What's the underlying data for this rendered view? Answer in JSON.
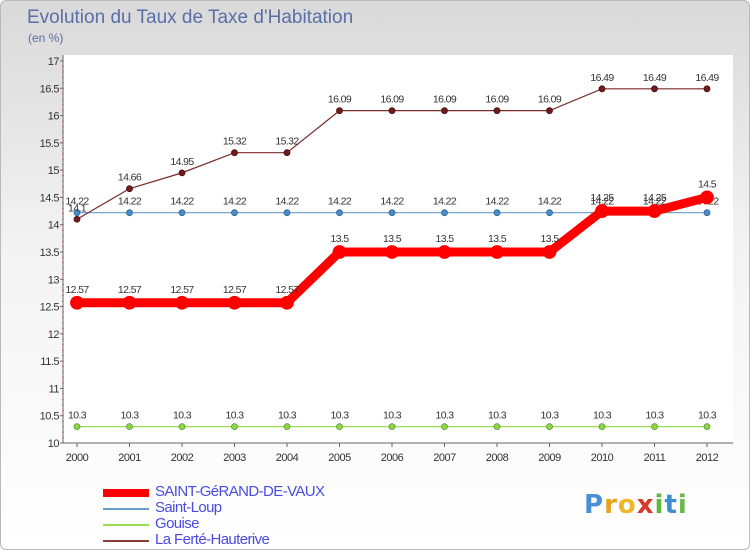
{
  "title": "Evolution du Taux de Taxe d'Habitation",
  "unit_label": "(en %)",
  "logo": {
    "text": "Proxiti",
    "letters": [
      "P",
      "r",
      "o",
      "x",
      "i",
      "t",
      "i"
    ],
    "colors": [
      "#4a8fd8",
      "#e9a21c",
      "#f0b62a",
      "#d63b2a",
      "#5fb63c",
      "#3f8fd0",
      "#6ab84a"
    ]
  },
  "legend": [
    {
      "label": "SAINT-GéRAND-DE-VAUX",
      "color": "#ff0000",
      "width": 8
    },
    {
      "label": "Saint-Loup",
      "color": "#6a9cc8",
      "width": 2
    },
    {
      "label": "Gouise",
      "color": "#99dd55",
      "width": 2
    },
    {
      "label": "La Ferté-Hauterive",
      "color": "#8b3a3a",
      "width": 2
    }
  ],
  "chart_data": {
    "type": "line",
    "x": [
      "2000",
      "2001",
      "2002",
      "2003",
      "2004",
      "2005",
      "2006",
      "2007",
      "2008",
      "2009",
      "2010",
      "2011",
      "2012"
    ],
    "ylim": [
      10,
      17
    ],
    "yticks": [
      "10",
      "10.5",
      "11",
      "11.5",
      "12",
      "12.5",
      "13",
      "13.5",
      "14",
      "14.5",
      "15",
      "15.5",
      "16",
      "16.5",
      "17"
    ],
    "series": [
      {
        "name": "SAINT-GéRAND-DE-VAUX",
        "color": "#ff0000",
        "values": [
          12.57,
          12.57,
          12.57,
          12.57,
          12.57,
          13.5,
          13.5,
          13.5,
          13.5,
          13.5,
          14.25,
          14.25,
          14.5
        ],
        "labels": [
          "12.57",
          "12.57",
          "12.57",
          "12.57",
          "12.57",
          "13.5",
          "13.5",
          "13.5",
          "13.5",
          "13.5",
          "14.25",
          "14.25",
          "14.5"
        ]
      },
      {
        "name": "Saint-Loup",
        "color": "#6a9cc8",
        "values": [
          14.22,
          14.22,
          14.22,
          14.22,
          14.22,
          14.22,
          14.22,
          14.22,
          14.22,
          14.22,
          14.22,
          14.22,
          14.22
        ],
        "labels": [
          "14.22",
          "14.22",
          "14.22",
          "14.22",
          "14.22",
          "14.22",
          "14.22",
          "14.22",
          "14.22",
          "14.22",
          "14.22",
          "14.22",
          "14.22"
        ]
      },
      {
        "name": "Gouise",
        "color": "#99dd55",
        "values": [
          10.3,
          10.3,
          10.3,
          10.3,
          10.3,
          10.3,
          10.3,
          10.3,
          10.3,
          10.3,
          10.3,
          10.3,
          10.3
        ],
        "labels": [
          "10.3",
          "10.3",
          "10.3",
          "10.3",
          "10.3",
          "10.3",
          "10.3",
          "10.3",
          "10.3",
          "10.3",
          "10.3",
          "10.3",
          "10.3"
        ]
      },
      {
        "name": "La Ferté-Hauterive",
        "color": "#7a2a2a",
        "values": [
          14.1,
          14.66,
          14.95,
          15.32,
          15.32,
          16.09,
          16.09,
          16.09,
          16.09,
          16.09,
          16.49,
          16.49,
          16.49
        ],
        "labels": [
          "14.1",
          "14.66",
          "14.95",
          "15.32",
          "15.32",
          "16.09",
          "16.09",
          "16.09",
          "16.09",
          "16.09",
          "16.49",
          "16.49",
          "16.49"
        ]
      }
    ]
  }
}
